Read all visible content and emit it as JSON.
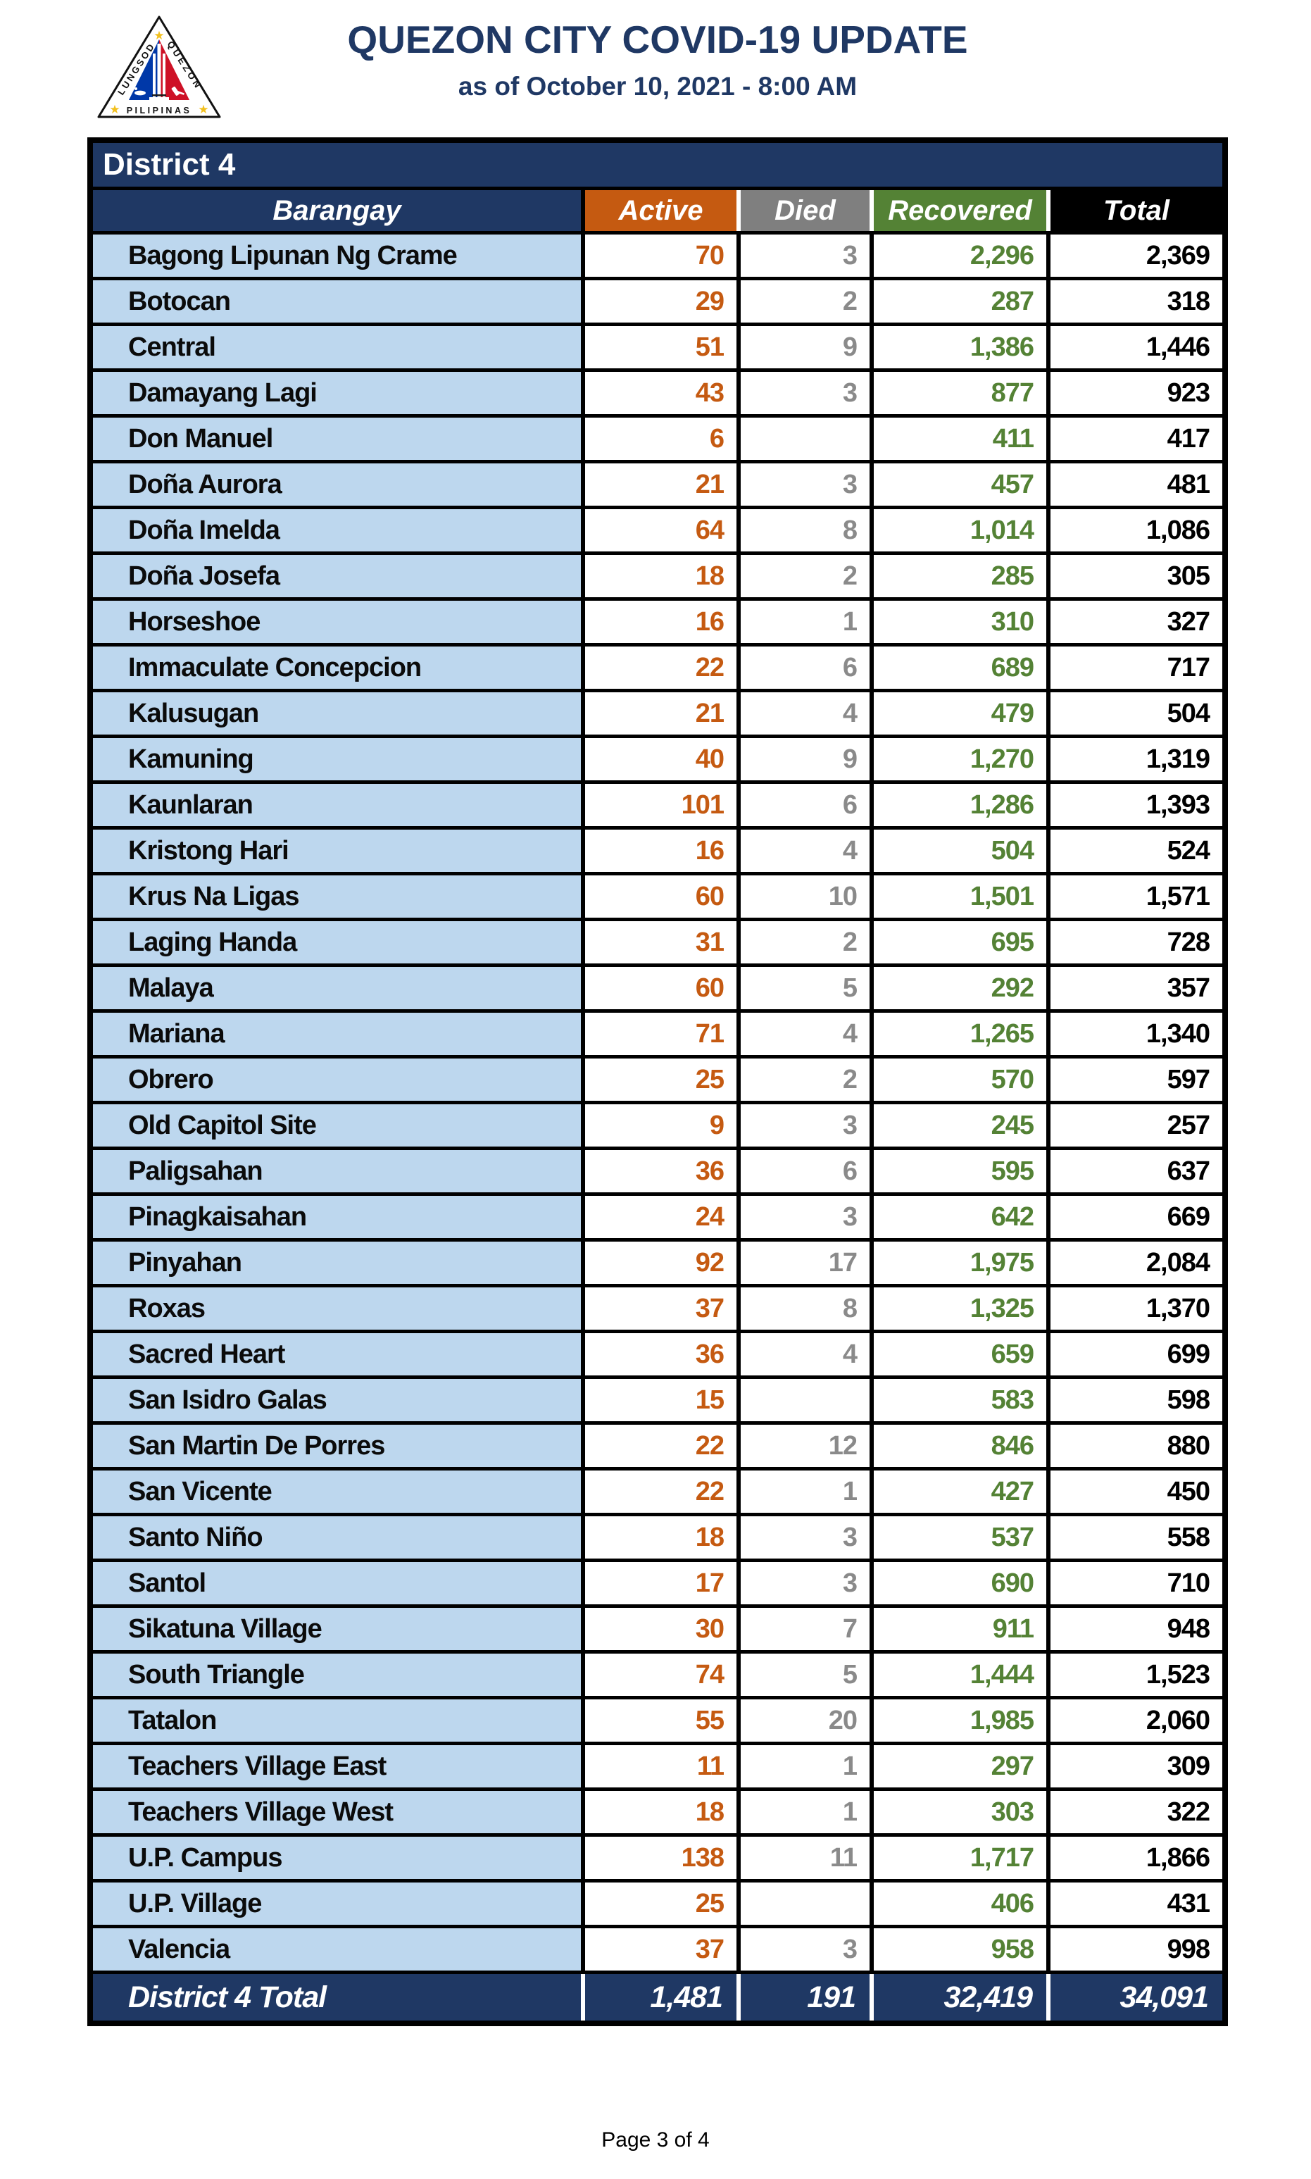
{
  "header": {
    "title": "QUEZON CITY COVID-19 UPDATE",
    "subtitle": "as of October 10, 2021 - 8:00 AM",
    "logo": {
      "text_left": "LUNGSOD",
      "text_right": "QUEZON",
      "text_bottom": "PILIPINAS"
    }
  },
  "table": {
    "district_label": "District 4",
    "columns": [
      "Barangay",
      "Active",
      "Died",
      "Recovered",
      "Total"
    ],
    "rows": [
      {
        "name": "Bagong Lipunan Ng Crame",
        "active": "70",
        "died": "3",
        "recovered": "2,296",
        "total": "2,369"
      },
      {
        "name": "Botocan",
        "active": "29",
        "died": "2",
        "recovered": "287",
        "total": "318"
      },
      {
        "name": "Central",
        "active": "51",
        "died": "9",
        "recovered": "1,386",
        "total": "1,446"
      },
      {
        "name": "Damayang Lagi",
        "active": "43",
        "died": "3",
        "recovered": "877",
        "total": "923"
      },
      {
        "name": "Don Manuel",
        "active": "6",
        "died": "",
        "recovered": "411",
        "total": "417"
      },
      {
        "name": "Doña Aurora",
        "active": "21",
        "died": "3",
        "recovered": "457",
        "total": "481"
      },
      {
        "name": "Doña Imelda",
        "active": "64",
        "died": "8",
        "recovered": "1,014",
        "total": "1,086"
      },
      {
        "name": "Doña Josefa",
        "active": "18",
        "died": "2",
        "recovered": "285",
        "total": "305"
      },
      {
        "name": "Horseshoe",
        "active": "16",
        "died": "1",
        "recovered": "310",
        "total": "327"
      },
      {
        "name": "Immaculate Concepcion",
        "active": "22",
        "died": "6",
        "recovered": "689",
        "total": "717"
      },
      {
        "name": "Kalusugan",
        "active": "21",
        "died": "4",
        "recovered": "479",
        "total": "504"
      },
      {
        "name": "Kamuning",
        "active": "40",
        "died": "9",
        "recovered": "1,270",
        "total": "1,319"
      },
      {
        "name": "Kaunlaran",
        "active": "101",
        "died": "6",
        "recovered": "1,286",
        "total": "1,393"
      },
      {
        "name": "Kristong Hari",
        "active": "16",
        "died": "4",
        "recovered": "504",
        "total": "524"
      },
      {
        "name": "Krus Na Ligas",
        "active": "60",
        "died": "10",
        "recovered": "1,501",
        "total": "1,571"
      },
      {
        "name": "Laging Handa",
        "active": "31",
        "died": "2",
        "recovered": "695",
        "total": "728"
      },
      {
        "name": "Malaya",
        "active": "60",
        "died": "5",
        "recovered": "292",
        "total": "357"
      },
      {
        "name": "Mariana",
        "active": "71",
        "died": "4",
        "recovered": "1,265",
        "total": "1,340"
      },
      {
        "name": "Obrero",
        "active": "25",
        "died": "2",
        "recovered": "570",
        "total": "597"
      },
      {
        "name": "Old Capitol Site",
        "active": "9",
        "died": "3",
        "recovered": "245",
        "total": "257"
      },
      {
        "name": "Paligsahan",
        "active": "36",
        "died": "6",
        "recovered": "595",
        "total": "637"
      },
      {
        "name": "Pinagkaisahan",
        "active": "24",
        "died": "3",
        "recovered": "642",
        "total": "669"
      },
      {
        "name": "Pinyahan",
        "active": "92",
        "died": "17",
        "recovered": "1,975",
        "total": "2,084"
      },
      {
        "name": "Roxas",
        "active": "37",
        "died": "8",
        "recovered": "1,325",
        "total": "1,370"
      },
      {
        "name": "Sacred Heart",
        "active": "36",
        "died": "4",
        "recovered": "659",
        "total": "699"
      },
      {
        "name": "San Isidro Galas",
        "active": "15",
        "died": "",
        "recovered": "583",
        "total": "598"
      },
      {
        "name": "San Martin De Porres",
        "active": "22",
        "died": "12",
        "recovered": "846",
        "total": "880"
      },
      {
        "name": "San Vicente",
        "active": "22",
        "died": "1",
        "recovered": "427",
        "total": "450"
      },
      {
        "name": "Santo Niño",
        "active": "18",
        "died": "3",
        "recovered": "537",
        "total": "558"
      },
      {
        "name": "Santol",
        "active": "17",
        "died": "3",
        "recovered": "690",
        "total": "710"
      },
      {
        "name": "Sikatuna Village",
        "active": "30",
        "died": "7",
        "recovered": "911",
        "total": "948"
      },
      {
        "name": "South Triangle",
        "active": "74",
        "died": "5",
        "recovered": "1,444",
        "total": "1,523"
      },
      {
        "name": "Tatalon",
        "active": "55",
        "died": "20",
        "recovered": "1,985",
        "total": "2,060"
      },
      {
        "name": "Teachers Village East",
        "active": "11",
        "died": "1",
        "recovered": "297",
        "total": "309"
      },
      {
        "name": "Teachers Village West",
        "active": "18",
        "died": "1",
        "recovered": "303",
        "total": "322"
      },
      {
        "name": "U.P. Campus",
        "active": "138",
        "died": "11",
        "recovered": "1,717",
        "total": "1,866"
      },
      {
        "name": "U.P. Village",
        "active": "25",
        "died": "",
        "recovered": "406",
        "total": "431"
      },
      {
        "name": "Valencia",
        "active": "37",
        "died": "3",
        "recovered": "958",
        "total": "998"
      }
    ],
    "total_row": {
      "label": "District 4 Total",
      "active": "1,481",
      "died": "191",
      "recovered": "32,419",
      "total": "34,091"
    }
  },
  "footer": {
    "page_label": "Page 3 of 4"
  },
  "colors": {
    "navy": "#1F3864",
    "light-blue": "#BDD7EE",
    "orange": "#C55A11",
    "gray": "#7F7F7F",
    "gray-text": "#8A8A8A",
    "green": "#548235",
    "ink": "#000000",
    "logo-blue": "#0038A8",
    "logo-red": "#CE1126",
    "logo-star": "#F2C01E"
  }
}
